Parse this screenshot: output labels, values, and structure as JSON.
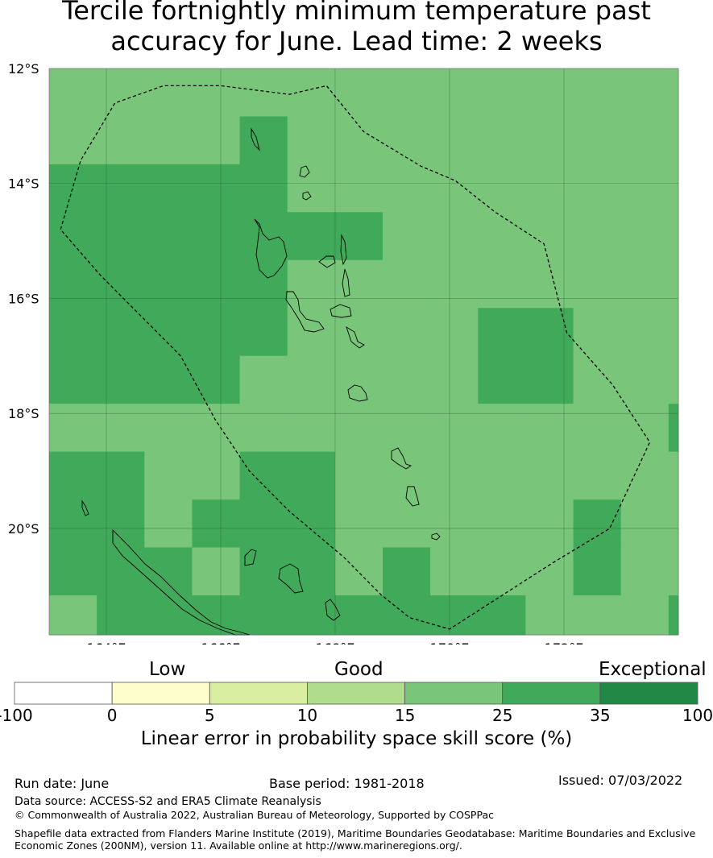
{
  "title": {
    "line1": "Tercile fortnightly minimum temperature past",
    "line2": "accuracy for June. Lead time: 2 weeks"
  },
  "map": {
    "lon_min": 163.0,
    "lon_max": 174.0,
    "lat_min": -21.85,
    "lat_max": -12.0,
    "lat_ticks": [
      "12°S",
      "14°S",
      "16°S",
      "18°S",
      "20°S"
    ],
    "lon_ticks": [
      "164°E",
      "166°E",
      "168°E",
      "170°E",
      "172°E"
    ],
    "grid_colors": {
      "1": "#79c67a",
      "2": "#40aa5a"
    },
    "cell_size_deg": 0.833,
    "cell_rows_note": "rows from north to south, columns from west to east; 1 = 15-25 %, 2 = 25-35 %",
    "cells": [
      [
        1,
        1,
        1,
        1,
        1,
        1,
        1,
        1,
        1,
        1,
        1,
        1,
        1,
        1
      ],
      [
        1,
        1,
        1,
        1,
        2,
        1,
        1,
        1,
        1,
        1,
        1,
        1,
        1,
        1
      ],
      [
        2,
        2,
        2,
        2,
        2,
        1,
        1,
        1,
        1,
        1,
        1,
        1,
        1,
        1
      ],
      [
        2,
        2,
        2,
        2,
        2,
        2,
        2,
        1,
        1,
        1,
        1,
        1,
        1,
        1
      ],
      [
        2,
        2,
        2,
        2,
        2,
        1,
        1,
        1,
        1,
        1,
        1,
        1,
        1,
        1
      ],
      [
        2,
        2,
        2,
        2,
        2,
        1,
        1,
        1,
        1,
        2,
        2,
        1,
        1,
        1
      ],
      [
        2,
        2,
        2,
        2,
        1,
        1,
        1,
        1,
        1,
        2,
        2,
        1,
        1,
        1
      ],
      [
        1,
        1,
        1,
        1,
        1,
        1,
        1,
        1,
        1,
        1,
        1,
        1,
        1,
        2
      ],
      [
        2,
        2,
        1,
        1,
        2,
        2,
        1,
        1,
        1,
        1,
        1,
        1,
        1,
        1
      ],
      [
        2,
        2,
        1,
        2,
        2,
        2,
        1,
        1,
        1,
        1,
        1,
        2,
        1,
        1
      ],
      [
        2,
        2,
        2,
        1,
        2,
        2,
        1,
        2,
        1,
        1,
        1,
        2,
        1,
        1
      ],
      [
        1,
        2,
        2,
        2,
        2,
        2,
        2,
        2,
        2,
        2,
        1,
        1,
        1,
        2
      ],
      [
        1,
        1,
        2,
        2,
        2,
        2,
        2,
        2,
        2,
        2,
        2,
        2,
        1,
        1
      ],
      [
        2,
        2,
        2,
        1,
        2,
        2,
        2,
        2,
        2,
        2,
        2,
        1,
        1,
        1
      ],
      [
        1,
        1,
        1,
        1,
        2,
        2,
        2,
        2,
        2,
        2,
        2,
        2,
        2,
        1
      ],
      [
        1,
        1,
        1,
        1,
        2,
        2,
        2,
        2,
        2,
        1,
        1,
        2,
        2,
        2
      ]
    ],
    "eez_boundary": [
      [
        163.2,
        -14.8
      ],
      [
        163.55,
        -13.6
      ],
      [
        164.15,
        -12.6
      ],
      [
        165.0,
        -12.3
      ],
      [
        166.0,
        -12.3
      ],
      [
        167.2,
        -12.45
      ],
      [
        167.85,
        -12.3
      ],
      [
        168.5,
        -13.1
      ],
      [
        169.5,
        -13.7
      ],
      [
        170.1,
        -13.95
      ],
      [
        170.8,
        -14.5
      ],
      [
        171.65,
        -15.05
      ],
      [
        172.05,
        -16.6
      ],
      [
        172.85,
        -17.5
      ],
      [
        173.5,
        -18.5
      ],
      [
        172.8,
        -20.0
      ],
      [
        171.8,
        -20.6
      ],
      [
        170.0,
        -21.75
      ],
      [
        169.3,
        -21.55
      ],
      [
        168.8,
        -21.15
      ],
      [
        168.15,
        -20.5
      ],
      [
        167.2,
        -19.7
      ],
      [
        166.5,
        -19.0
      ],
      [
        165.9,
        -18.1
      ],
      [
        165.3,
        -17.0
      ],
      [
        164.7,
        -16.4
      ],
      [
        163.9,
        -15.6
      ],
      [
        163.2,
        -14.8
      ]
    ]
  },
  "colorbar": {
    "words": [
      "Low",
      "Good",
      "Exceptional"
    ],
    "tick_labels": [
      "-100",
      "0",
      "5",
      "10",
      "15",
      "25",
      "35",
      "100"
    ],
    "colors": [
      "#ffffff",
      "#fefecc",
      "#d9eea1",
      "#afdd8c",
      "#79c67a",
      "#40aa5a",
      "#228845"
    ],
    "label": "Linear error in probability space skill score (%)"
  },
  "footer": {
    "run_date": "Run date: June",
    "base_period": "Base period: 1981-2018",
    "issued": "Issued: 07/03/2022",
    "data_source": "Data source: ACCESS-S2 and ERA5 Climate Reanalysis",
    "copyright": "© Commonwealth of Australia 2022, Australian Bureau of Meteorology, Supported by COSPPac",
    "shapefile_line1": "Shapefile data extracted from Flanders Marine Institute (2019), Maritime Boundaries Geodatabase: Maritime Boundaries and Exclusive",
    "shapefile_line2": "Economic Zones (200NM), version 11. Available online at http://www.marineregions.org/."
  }
}
